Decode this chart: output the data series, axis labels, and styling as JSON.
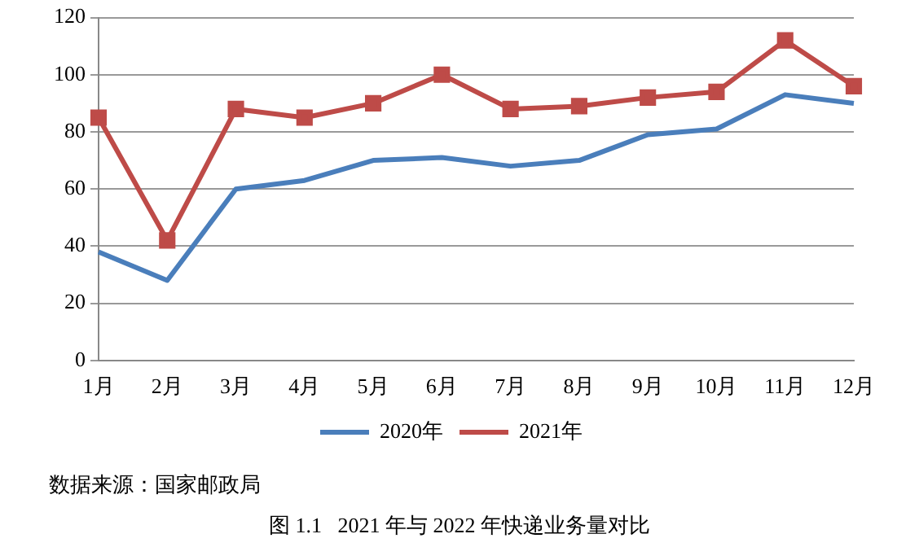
{
  "chart_data": {
    "type": "line",
    "categories": [
      "1月",
      "2月",
      "3月",
      "4月",
      "5月",
      "6月",
      "7月",
      "8月",
      "9月",
      "10月",
      "11月",
      "12月"
    ],
    "series": [
      {
        "name": "2020年",
        "color": "#4a7ebb",
        "values": [
          38,
          28,
          60,
          63,
          70,
          71,
          68,
          70,
          79,
          81,
          93,
          90
        ],
        "marker": "none"
      },
      {
        "name": "2021年",
        "color": "#be4b48",
        "values": [
          85,
          42,
          88,
          85,
          90,
          100,
          88,
          89,
          92,
          94,
          112,
          96
        ],
        "marker": "square"
      }
    ],
    "ylim": [
      0,
      120
    ],
    "yticks": [
      0,
      20,
      40,
      60,
      80,
      100,
      120
    ],
    "grid": "y",
    "legend": "bottom",
    "annotations": [
      "数据来源：国家邮政局",
      "图 1.1   2021 年与 2022 年快递业务量对比"
    ]
  }
}
